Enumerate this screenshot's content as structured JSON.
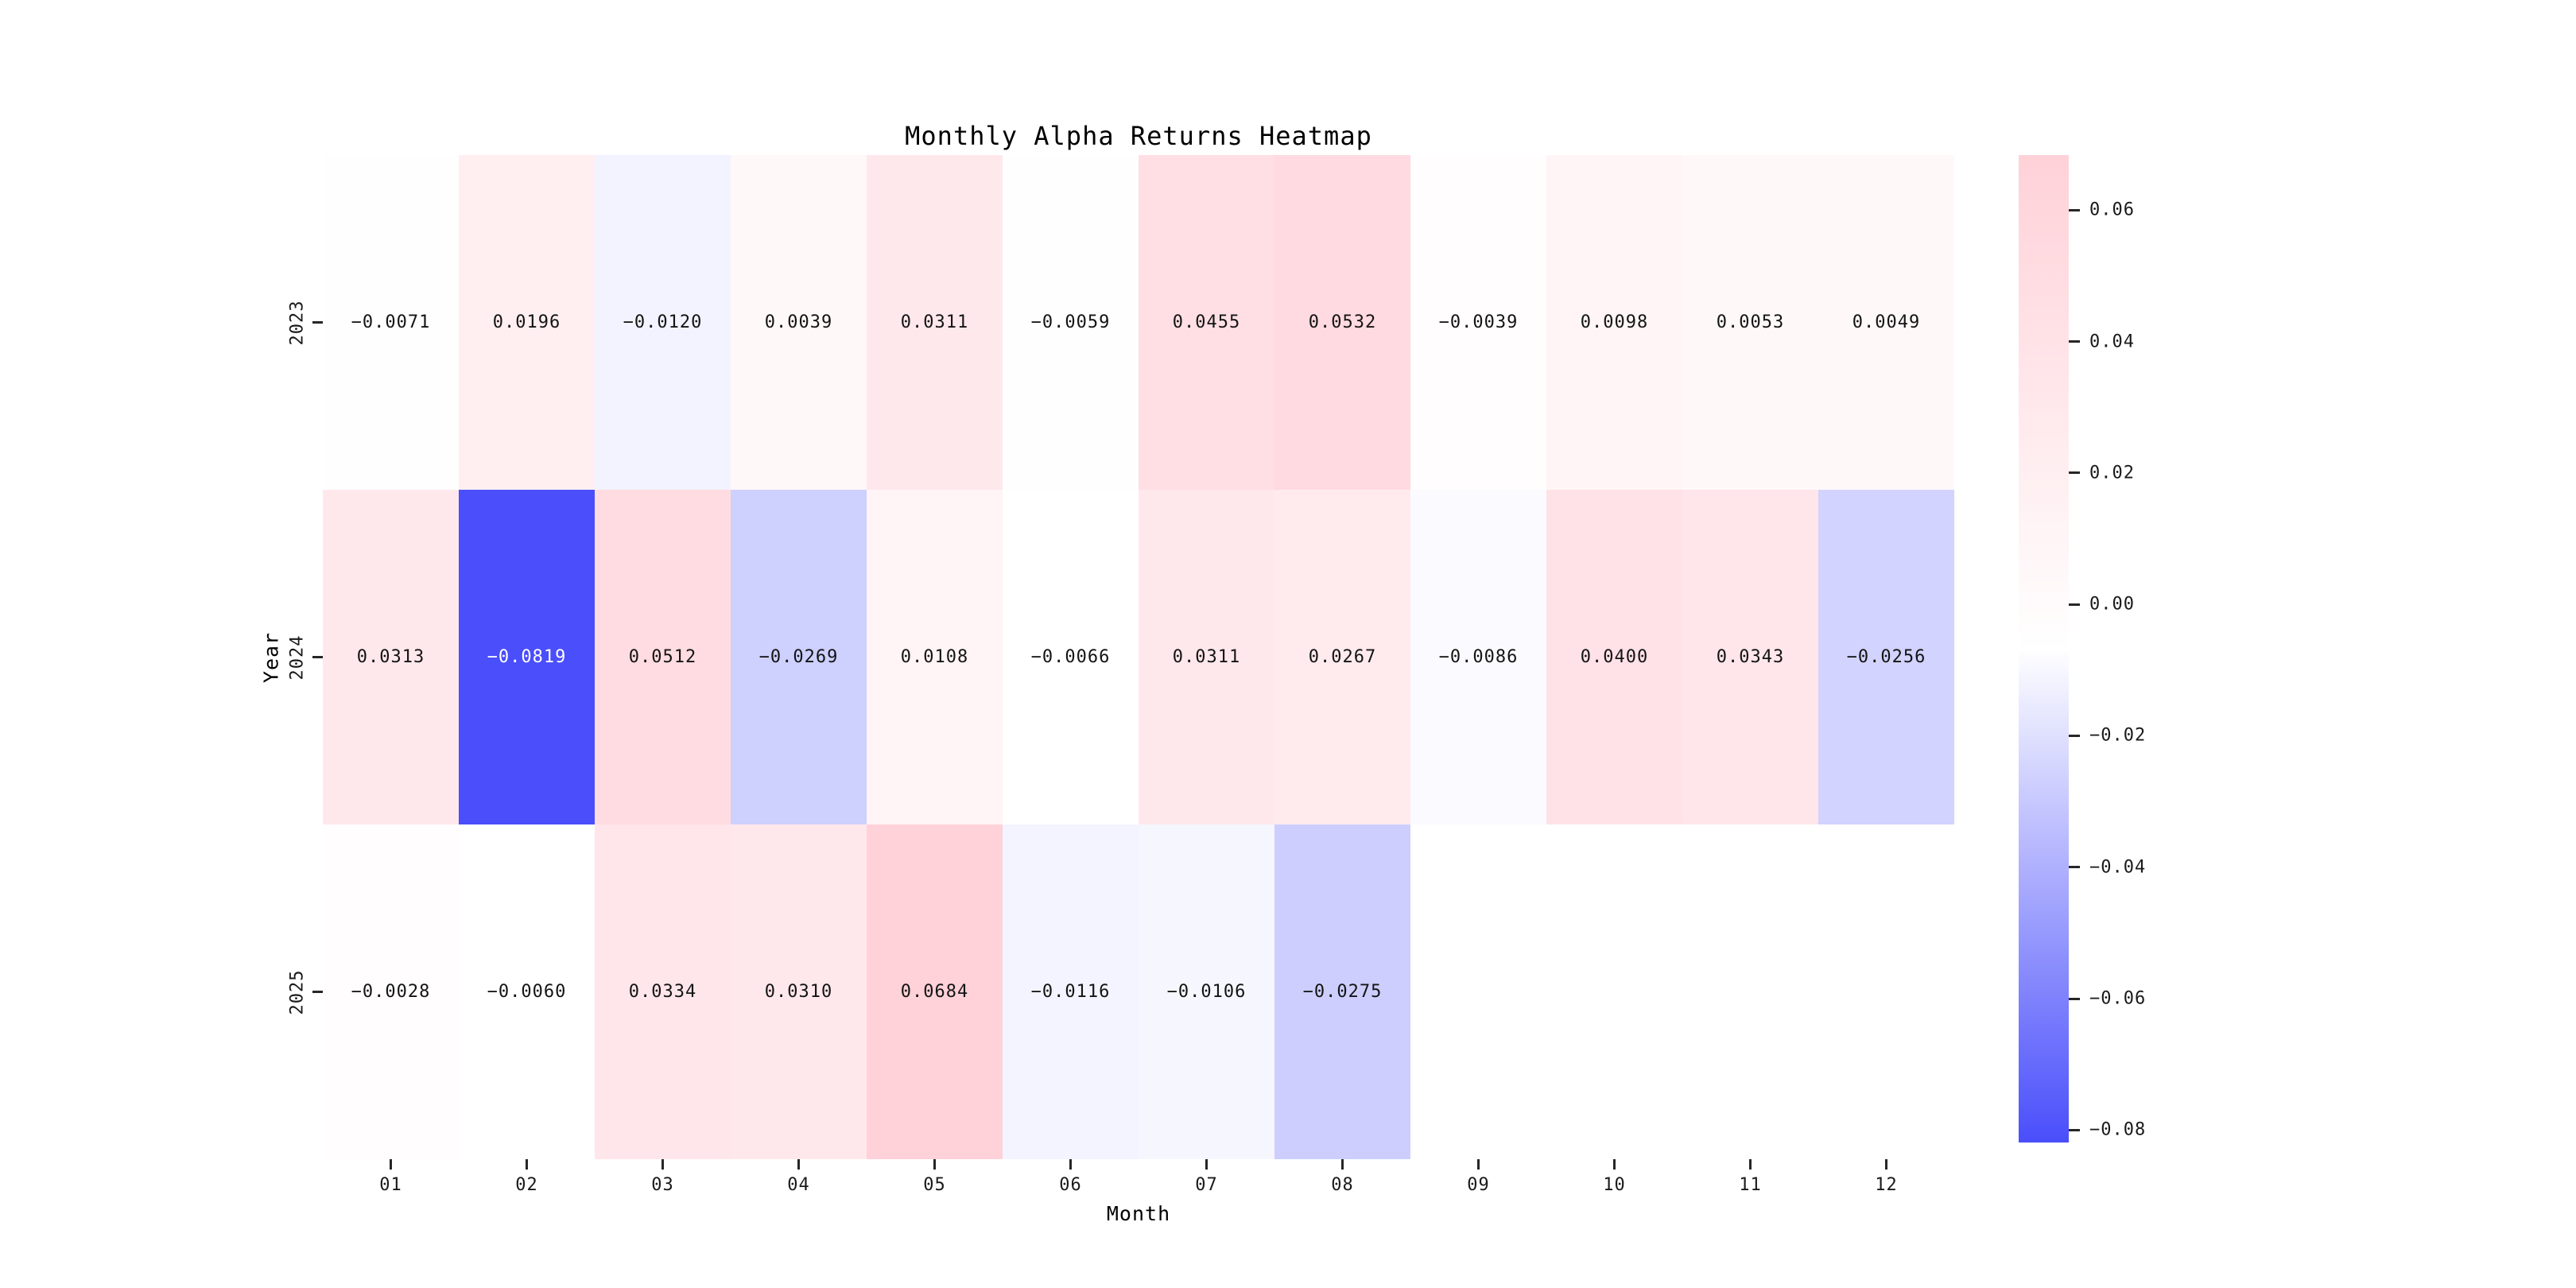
{
  "chart_data": {
    "type": "heatmap",
    "title": "Monthly Alpha Returns Heatmap",
    "xlabel": "Month",
    "ylabel": "Year",
    "x_categories": [
      "01",
      "02",
      "03",
      "04",
      "05",
      "06",
      "07",
      "08",
      "09",
      "10",
      "11",
      "12"
    ],
    "y_categories": [
      "2023",
      "2024",
      "2025"
    ],
    "series": [
      {
        "name": "2023",
        "values": [
          -0.0071,
          0.0196,
          -0.012,
          0.0039,
          0.0311,
          -0.0059,
          0.0455,
          0.0532,
          -0.0039,
          0.0098,
          0.0053,
          0.0049
        ]
      },
      {
        "name": "2024",
        "values": [
          0.0313,
          -0.0819,
          0.0512,
          -0.0269,
          0.0108,
          -0.0066,
          0.0311,
          0.0267,
          -0.0086,
          0.04,
          0.0343,
          -0.0256
        ]
      },
      {
        "name": "2025",
        "values": [
          -0.0028,
          -0.006,
          0.0334,
          0.031,
          0.0684,
          -0.0116,
          -0.0106,
          -0.0275,
          null,
          null,
          null,
          null
        ]
      }
    ],
    "vmin": -0.0819,
    "vmax": 0.0684,
    "annotation_decimals": 4,
    "colormap": {
      "negative_end": "#4a4efb",
      "midpoint": "#ffffff",
      "positive_end": "#ffd1d8"
    },
    "colorbar_ticks": [
      0.06,
      0.04,
      0.02,
      0.0,
      -0.02,
      -0.04,
      -0.06,
      -0.08
    ],
    "colorbar_tick_decimals": 2,
    "grid": false,
    "legend_position": "colorbar-right",
    "annotation_text_color_light": "#ffffff",
    "annotation_text_color_dark": "#141414"
  }
}
